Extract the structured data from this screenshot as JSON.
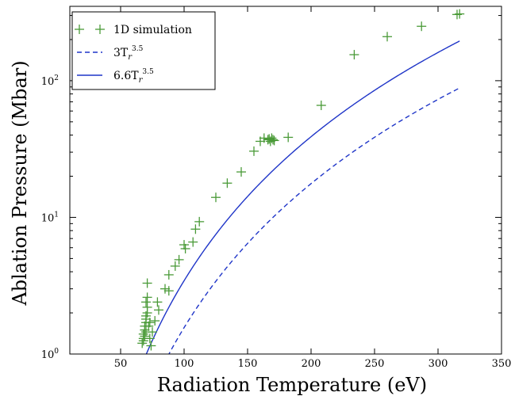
{
  "chart_data": {
    "type": "line",
    "xlabel": "Radiation Temperature (eV)",
    "ylabel": "Ablation Pressure (Mbar)",
    "xlim": [
      10,
      350
    ],
    "ylim": [
      1,
      350
    ],
    "yscale": "log",
    "x_ticks": [
      50,
      100,
      150,
      200,
      250,
      300,
      350
    ],
    "y_ticks": [
      {
        "value": 1,
        "base": "10",
        "exp": "0"
      },
      {
        "value": 10,
        "base": "10",
        "exp": "1"
      },
      {
        "value": 100,
        "base": "10",
        "exp": "2"
      }
    ],
    "grid": false,
    "legend_position": "top-left",
    "series": [
      {
        "label_parts": {
          "text": "1D simulation"
        },
        "style": "marker-plus",
        "color": "#4a9a38",
        "points": [
          [
            67,
            1.2
          ],
          [
            68,
            1.3
          ],
          [
            68,
            1.4
          ],
          [
            69,
            1.5
          ],
          [
            69,
            1.6
          ],
          [
            70,
            1.7
          ],
          [
            70,
            1.8
          ],
          [
            70,
            1.9
          ],
          [
            71,
            2.0
          ],
          [
            71,
            2.2
          ],
          [
            70,
            2.4
          ],
          [
            71,
            2.6
          ],
          [
            71,
            3.3
          ],
          [
            68,
            1.25
          ],
          [
            69,
            1.35
          ],
          [
            70,
            1.45
          ],
          [
            72,
            1.6
          ],
          [
            73,
            1.7
          ],
          [
            74,
            1.15
          ],
          [
            73,
            1.3
          ],
          [
            75,
            1.45
          ],
          [
            77,
            1.75
          ],
          [
            79,
            2.4
          ],
          [
            80,
            2.1
          ],
          [
            85,
            3.0
          ],
          [
            88,
            2.9
          ],
          [
            88,
            3.8
          ],
          [
            93,
            4.4
          ],
          [
            96,
            4.9
          ],
          [
            100,
            6.3
          ],
          [
            101,
            5.9
          ],
          [
            107,
            6.6
          ],
          [
            109,
            8.2
          ],
          [
            112,
            9.3
          ],
          [
            125,
            14.0
          ],
          [
            134,
            17.8
          ],
          [
            145,
            21.5
          ],
          [
            155,
            30.5
          ],
          [
            160,
            36.0
          ],
          [
            163,
            38.0
          ],
          [
            166,
            37.0
          ],
          [
            167,
            37.5
          ],
          [
            168,
            36.0
          ],
          [
            169,
            38.0
          ],
          [
            170,
            37.0
          ],
          [
            171,
            36.5
          ],
          [
            182,
            38.5
          ],
          [
            208,
            66.0
          ],
          [
            234,
            155.0
          ],
          [
            260,
            210.0
          ],
          [
            287,
            250.0
          ],
          [
            315,
            305.0
          ],
          [
            317,
            308.0
          ]
        ]
      },
      {
        "label_parts": {
          "prefix": "3T",
          "sub": "r",
          "sup": "3.5"
        },
        "style": "dashed",
        "color": "#1f35c8",
        "coefficient": 1.56e-07,
        "exponent": 3.5,
        "x_range": [
          76,
          317
        ]
      },
      {
        "label_parts": {
          "prefix": "6.6T",
          "sub": "r",
          "sup": "3.5"
        },
        "style": "solid",
        "color": "#1f35c8",
        "coefficient": 3.44e-07,
        "exponent": 3.5,
        "x_range": [
          66,
          317
        ]
      }
    ]
  }
}
